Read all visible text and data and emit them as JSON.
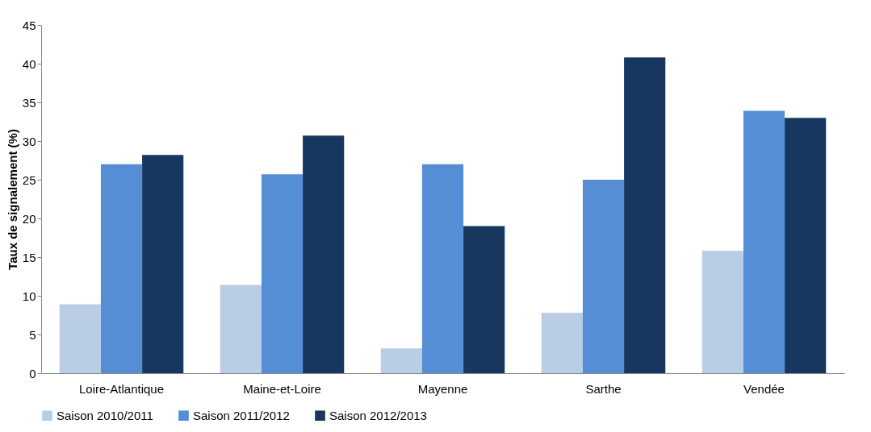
{
  "chart_data": {
    "type": "bar",
    "ylabel": "Taux de signalement (%)",
    "categories": [
      "Loire-Atlantique",
      "Maine-et-Loire",
      "Mayenne",
      "Sarthe",
      "Vendée"
    ],
    "series": [
      {
        "name": "Saison 2010/2011",
        "color": "#b9cde5",
        "values": [
          8.9,
          11.4,
          3.2,
          7.8,
          15.8
        ]
      },
      {
        "name": "Saison 2011/2012",
        "color": "#558ed5",
        "values": [
          27,
          25.7,
          27,
          25,
          33.9
        ]
      },
      {
        "name": "Saison 2012/2013",
        "color": "#17375e",
        "values": [
          28.2,
          30.7,
          19,
          40.8,
          33
        ]
      }
    ],
    "ylim": [
      0,
      45
    ],
    "yticks": [
      0,
      5,
      10,
      15,
      20,
      25,
      30,
      35,
      40,
      45
    ],
    "grid": false,
    "legend": "bottom"
  }
}
